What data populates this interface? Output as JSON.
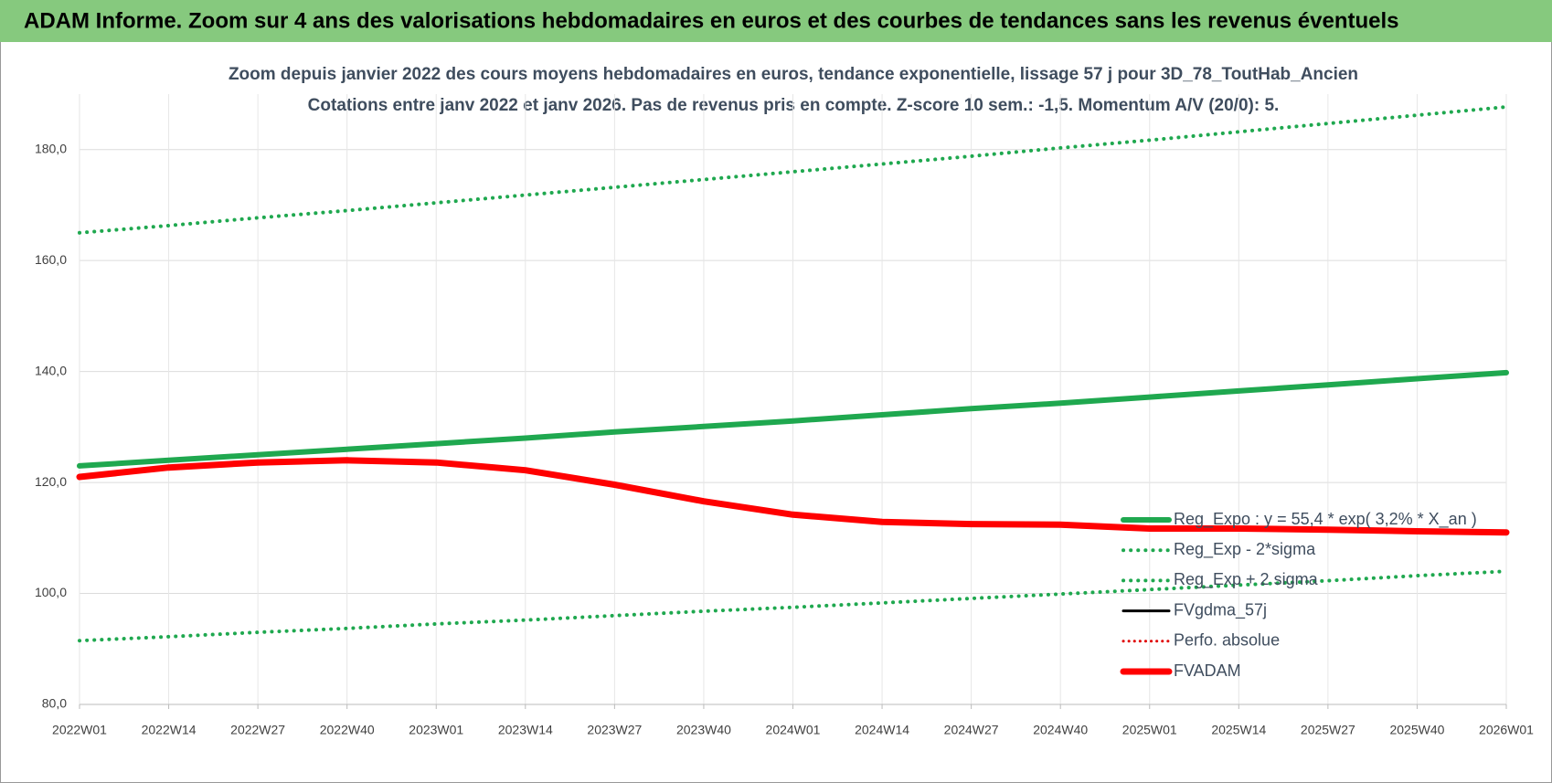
{
  "header": {
    "title": "ADAM Informe. Zoom sur 4 ans des valorisations hebdomadaires en euros et des courbes de tendances sans les revenus éventuels"
  },
  "chart_data": {
    "type": "line",
    "title": "Zoom depuis janvier 2022 des cours moyens hebdomadaires en euros, tendance exponentielle, lissage 57 j pour 3D_78_ToutHab_Ancien",
    "subtitle": "Cotations entre janv 2022 et janv 2026. Pas de revenus pris en compte. Z-score 10 sem.: -1,5. Momentum A/V (20/0): 5.",
    "categories": [
      "2022W01",
      "2022W14",
      "2022W27",
      "2022W40",
      "2023W01",
      "2023W14",
      "2023W27",
      "2023W40",
      "2024W01",
      "2024W14",
      "2024W27",
      "2024W40",
      "2025W01",
      "2025W14",
      "2025W27",
      "2025W40",
      "2026W01"
    ],
    "series": [
      {
        "name": "Reg_Expo : y = 55,4 * exp( 3,2% * X_an )",
        "color": "#1fa84f",
        "style": "solid",
        "values": [
          123,
          124.0,
          125.0,
          126.0,
          127.0,
          128.0,
          129.1,
          130.1,
          131.1,
          132.2,
          133.3,
          134.3,
          135.4,
          136.5,
          137.6,
          138.7,
          139.8
        ]
      },
      {
        "name": "Reg_Exp - 2*sigma",
        "color": "#1fa84f",
        "style": "dotted",
        "values": [
          91.5,
          92.2,
          93.0,
          93.7,
          94.5,
          95.2,
          96.0,
          96.8,
          97.5,
          98.3,
          99.1,
          99.9,
          100.7,
          101.5,
          102.3,
          103.2,
          104.0
        ]
      },
      {
        "name": "Reg_Exp + 2 sigma",
        "color": "#1fa84f",
        "style": "dotted",
        "values": [
          165,
          166.3,
          167.7,
          169.0,
          170.4,
          171.8,
          173.2,
          174.6,
          176.0,
          177.4,
          178.8,
          180.3,
          181.7,
          183.2,
          184.7,
          186.2,
          187.7
        ]
      },
      {
        "name": "FVgdma_57j",
        "color": "#000000",
        "style": "solid",
        "values": [
          121,
          122.6,
          123.5,
          124,
          123.5,
          122,
          119.5,
          116.5,
          114.3,
          113,
          112.5,
          112.3,
          111.8,
          111.7,
          111.5,
          111.2,
          111
        ]
      },
      {
        "name": "Perfo. absolue",
        "color": "#e00000",
        "style": "dotted",
        "values": [
          121,
          122.7,
          123.6,
          124,
          123.6,
          122.2,
          119.6,
          116.6,
          114.2,
          112.9,
          112.5,
          112.4,
          111.7,
          111.7,
          111.5,
          111.2,
          111.0
        ]
      },
      {
        "name": "FVADAM",
        "color": "#ff0000",
        "style": "solid",
        "values": [
          121,
          122.7,
          123.6,
          124,
          123.6,
          122.2,
          119.6,
          116.6,
          114.2,
          112.9,
          112.5,
          112.4,
          111.7,
          111.7,
          111.5,
          111.2,
          111.0
        ]
      }
    ],
    "ylim": [
      80,
      190
    ],
    "yticks": [
      {
        "value": 80,
        "label": "80,0"
      },
      {
        "value": 100,
        "label": "100,0"
      },
      {
        "value": 120,
        "label": "120,0"
      },
      {
        "value": 140,
        "label": "140,0"
      },
      {
        "value": 160,
        "label": "160,0"
      },
      {
        "value": 180,
        "label": "180,0"
      }
    ],
    "grid": true
  }
}
